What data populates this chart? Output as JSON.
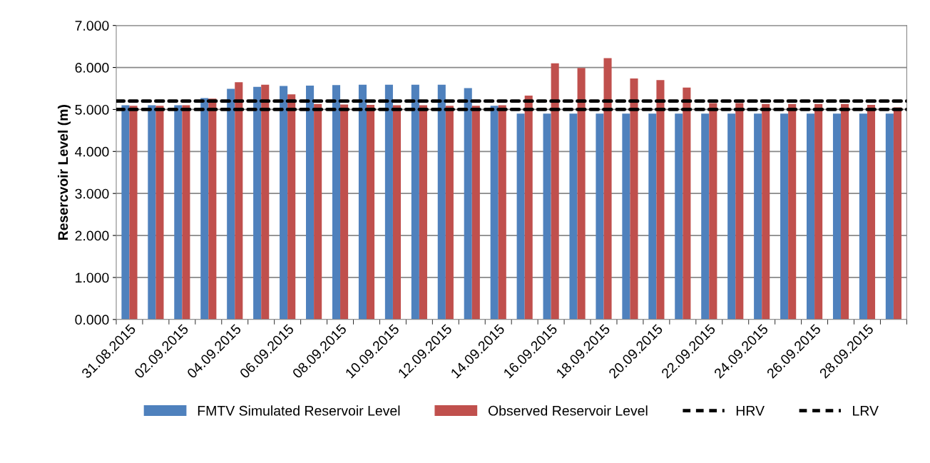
{
  "chart_data": {
    "type": "bar",
    "ylabel": "Resercvoir Level (m)",
    "categories": [
      "31.08.2015",
      null,
      "02.09.2015",
      null,
      "04.09.2015",
      null,
      "06.09.2015",
      null,
      "08.09.2015",
      null,
      "10.09.2015",
      null,
      "12.09.2015",
      null,
      "14.09.2015",
      null,
      "16.09.2015",
      null,
      "18.09.2015",
      null,
      "20.09.2015",
      null,
      "22.09.2015",
      null,
      "24.09.2015",
      null,
      "26.09.2015",
      null,
      "28.09.2015",
      null
    ],
    "series": [
      {
        "name": "FMTV Simulated Reservoir Level",
        "color": "#4f81bd",
        "values": [
          5.1,
          5.1,
          5.1,
          5.27,
          5.49,
          5.54,
          5.56,
          5.57,
          5.58,
          5.59,
          5.59,
          5.59,
          5.59,
          5.51,
          5.09,
          4.9,
          4.9,
          4.9,
          4.9,
          4.9,
          4.9,
          4.9,
          4.9,
          4.9,
          4.9,
          4.9,
          4.9,
          4.9,
          4.9,
          4.9
        ]
      },
      {
        "name": "Observed Reservoir Level",
        "color": "#c0504d",
        "values": [
          5.09,
          5.09,
          5.1,
          5.26,
          5.65,
          5.59,
          5.36,
          5.13,
          5.12,
          5.11,
          5.1,
          5.1,
          5.09,
          5.09,
          5.1,
          5.33,
          6.1,
          5.99,
          6.22,
          5.74,
          5.7,
          5.52,
          5.15,
          5.15,
          5.13,
          5.13,
          5.13,
          5.13,
          5.11,
          5.05
        ]
      }
    ],
    "ref_lines": [
      {
        "axis": "y",
        "value": 5.2,
        "label": "HRV",
        "color": "#000000",
        "line_style": "dashed"
      },
      {
        "axis": "y",
        "value": 5.0,
        "label": "LRV",
        "color": "#000000",
        "line_style": "dashed"
      }
    ],
    "ylim": [
      0,
      7
    ],
    "yticks": [
      {
        "value": 0,
        "label": "0.000"
      },
      {
        "value": 1,
        "label": "1.000"
      },
      {
        "value": 2,
        "label": "2.000"
      },
      {
        "value": 3,
        "label": "3.000"
      },
      {
        "value": 4,
        "label": "4.000"
      },
      {
        "value": 5,
        "label": "5.000"
      },
      {
        "value": 6,
        "label": "6.000"
      },
      {
        "value": 7,
        "label": "7.000"
      }
    ],
    "grid": "y",
    "legend": "bottom"
  }
}
